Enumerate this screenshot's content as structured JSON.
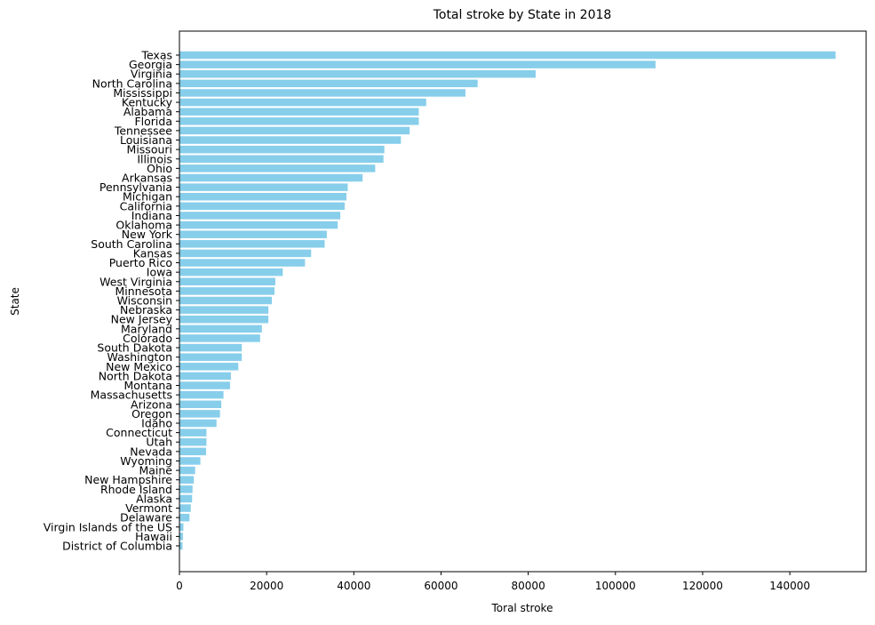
{
  "chart_data": {
    "type": "bar",
    "orientation": "horizontal",
    "title": "Total stroke by State in 2018",
    "xlabel": "Toral stroke",
    "ylabel": "State",
    "xlim": [
      0,
      157500
    ],
    "xticks": [
      0,
      20000,
      40000,
      60000,
      80000,
      100000,
      120000,
      140000
    ],
    "grid": false,
    "legend": "none",
    "bar_color": "#87ceeb",
    "categories": [
      "Texas",
      "Georgia",
      "Virginia",
      "North Carolina",
      "Mississippi",
      "Kentucky",
      "Alabama",
      "Florida",
      "Tennessee",
      "Louisiana",
      "Missouri",
      "Illinois",
      "Ohio",
      "Arkansas",
      "Pennsylvania",
      "Michigan",
      "California",
      "Indiana",
      "Oklahoma",
      "New York",
      "South Carolina",
      "Kansas",
      "Puerto Rico",
      "Iowa",
      "West Virginia",
      "Minnesota",
      "Wisconsin",
      "Nebraska",
      "New Jersey",
      "Maryland",
      "Colorado",
      "South Dakota",
      "Washington",
      "New Mexico",
      "North Dakota",
      "Montana",
      "Massachusetts",
      "Arizona",
      "Oregon",
      "Idaho",
      "Connecticut",
      "Utah",
      "Nevada",
      "Wyoming",
      "Maine",
      "New Hampshire",
      "Rhode Island",
      "Alaska",
      "Vermont",
      "Delaware",
      "Virgin Islands of the US",
      "Hawaii",
      "District of Columbia"
    ],
    "values": [
      150500,
      109200,
      81700,
      68400,
      65600,
      56600,
      54900,
      54900,
      52800,
      50800,
      47000,
      46800,
      44900,
      42000,
      38600,
      38300,
      37900,
      36900,
      36300,
      33800,
      33300,
      30200,
      28800,
      23700,
      22000,
      21800,
      21200,
      20400,
      20400,
      18900,
      18500,
      14300,
      14300,
      13500,
      11800,
      11600,
      10100,
      9600,
      9300,
      8500,
      6200,
      6200,
      6100,
      4800,
      3600,
      3300,
      3000,
      2900,
      2600,
      2300,
      900,
      800,
      700
    ]
  }
}
